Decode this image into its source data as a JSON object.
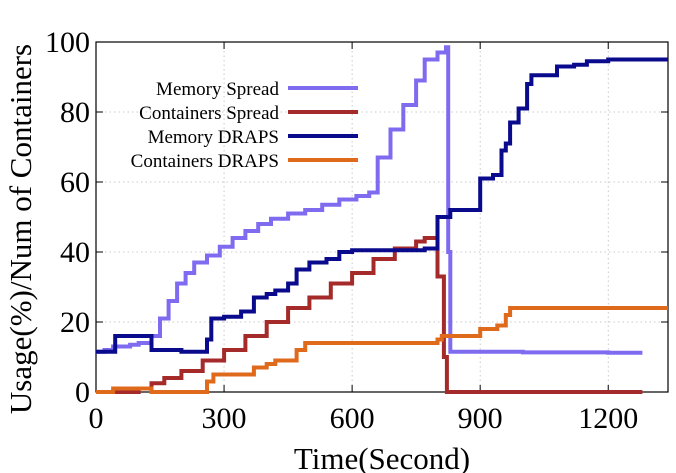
{
  "chart_data": {
    "type": "line",
    "title": "",
    "xlabel": "Time(Second)",
    "ylabel": "Usage(%)/Num of Containers",
    "xlim": [
      0,
      1340
    ],
    "ylim": [
      0,
      100
    ],
    "xticks": [
      0,
      300,
      600,
      900,
      1200
    ],
    "yticks": [
      0,
      20,
      40,
      60,
      80,
      100
    ],
    "grid": true,
    "legend_position": "top-left",
    "series": [
      {
        "name": "Memory Spread",
        "color": "#7f6bf0",
        "step": true,
        "points": [
          [
            0,
            11.5
          ],
          [
            20,
            12
          ],
          [
            40,
            13
          ],
          [
            80,
            13.5
          ],
          [
            100,
            14
          ],
          [
            130,
            16
          ],
          [
            150,
            21
          ],
          [
            170,
            26
          ],
          [
            190,
            31
          ],
          [
            210,
            34
          ],
          [
            230,
            37
          ],
          [
            260,
            39
          ],
          [
            290,
            41.5
          ],
          [
            320,
            44
          ],
          [
            350,
            46
          ],
          [
            380,
            48
          ],
          [
            410,
            49.5
          ],
          [
            450,
            51
          ],
          [
            490,
            52
          ],
          [
            530,
            53.5
          ],
          [
            570,
            55
          ],
          [
            610,
            56
          ],
          [
            640,
            57
          ],
          [
            660,
            67
          ],
          [
            690,
            75
          ],
          [
            720,
            82
          ],
          [
            750,
            89
          ],
          [
            770,
            95
          ],
          [
            800,
            97
          ],
          [
            820,
            98.5
          ],
          [
            825,
            40
          ],
          [
            830,
            11.5
          ],
          [
            860,
            11.5
          ],
          [
            900,
            11.5
          ],
          [
            1000,
            11.3
          ],
          [
            1100,
            11.3
          ],
          [
            1200,
            11.2
          ],
          [
            1280,
            11.2
          ]
        ]
      },
      {
        "name": "Containers Spread",
        "color": "#a52a2a",
        "step": true,
        "points": [
          [
            0,
            0
          ],
          [
            90,
            0
          ],
          [
            100,
            1
          ],
          [
            130,
            2.5
          ],
          [
            160,
            4
          ],
          [
            200,
            6
          ],
          [
            250,
            9
          ],
          [
            300,
            12
          ],
          [
            350,
            16
          ],
          [
            400,
            20
          ],
          [
            450,
            24
          ],
          [
            500,
            27
          ],
          [
            550,
            31
          ],
          [
            600,
            34
          ],
          [
            650,
            38
          ],
          [
            700,
            41
          ],
          [
            750,
            43
          ],
          [
            770,
            44
          ],
          [
            790,
            44
          ],
          [
            800,
            33
          ],
          [
            815,
            10
          ],
          [
            822,
            0
          ],
          [
            900,
            0
          ],
          [
            1000,
            0
          ],
          [
            1100,
            0
          ],
          [
            1280,
            0
          ]
        ]
      },
      {
        "name": "Memory DRAPS",
        "color": "#0a0a8c",
        "step": true,
        "points": [
          [
            0,
            11.5
          ],
          [
            40,
            11.5
          ],
          [
            45,
            16
          ],
          [
            120,
            16
          ],
          [
            130,
            12
          ],
          [
            200,
            11.5
          ],
          [
            240,
            11.5
          ],
          [
            260,
            15
          ],
          [
            270,
            21
          ],
          [
            300,
            21.5
          ],
          [
            340,
            23
          ],
          [
            370,
            27
          ],
          [
            400,
            28
          ],
          [
            420,
            29
          ],
          [
            450,
            31
          ],
          [
            470,
            35
          ],
          [
            500,
            37
          ],
          [
            540,
            38
          ],
          [
            570,
            40
          ],
          [
            600,
            40.5
          ],
          [
            650,
            40.5
          ],
          [
            700,
            40.5
          ],
          [
            750,
            40.5
          ],
          [
            770,
            41
          ],
          [
            800,
            50
          ],
          [
            830,
            52
          ],
          [
            890,
            52
          ],
          [
            900,
            61
          ],
          [
            930,
            62
          ],
          [
            950,
            69
          ],
          [
            960,
            71
          ],
          [
            970,
            77
          ],
          [
            990,
            81
          ],
          [
            1010,
            88
          ],
          [
            1020,
            90.5
          ],
          [
            1060,
            90.5
          ],
          [
            1080,
            93
          ],
          [
            1120,
            93.5
          ],
          [
            1150,
            94.5
          ],
          [
            1200,
            95
          ],
          [
            1340,
            95
          ]
        ]
      },
      {
        "name": "Containers DRAPS",
        "color": "#e06a1c",
        "step": true,
        "points": [
          [
            0,
            0
          ],
          [
            30,
            0
          ],
          [
            40,
            1
          ],
          [
            120,
            1
          ],
          [
            130,
            0
          ],
          [
            240,
            0
          ],
          [
            260,
            3
          ],
          [
            275,
            5
          ],
          [
            350,
            5
          ],
          [
            370,
            7
          ],
          [
            400,
            8
          ],
          [
            420,
            9
          ],
          [
            460,
            9
          ],
          [
            470,
            12
          ],
          [
            490,
            14
          ],
          [
            600,
            14
          ],
          [
            700,
            14
          ],
          [
            790,
            14
          ],
          [
            800,
            15
          ],
          [
            810,
            16
          ],
          [
            890,
            16
          ],
          [
            900,
            18
          ],
          [
            930,
            18
          ],
          [
            940,
            19
          ],
          [
            960,
            22
          ],
          [
            970,
            24
          ],
          [
            1000,
            24
          ],
          [
            1100,
            24
          ],
          [
            1200,
            24
          ],
          [
            1340,
            24
          ]
        ]
      }
    ]
  }
}
